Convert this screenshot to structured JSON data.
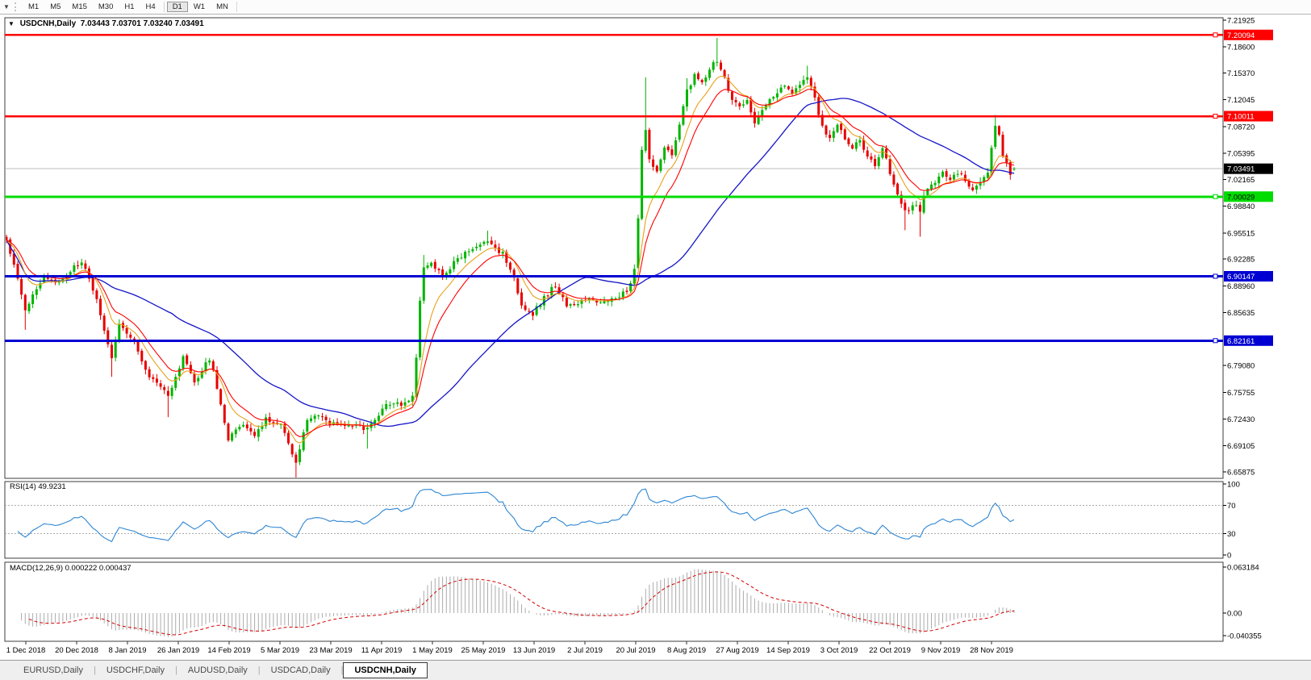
{
  "toolbar": {
    "dropdown_icon": "▼",
    "timeframes": [
      {
        "label": "M1",
        "active": false
      },
      {
        "label": "M5",
        "active": false
      },
      {
        "label": "M15",
        "active": false
      },
      {
        "label": "M30",
        "active": false
      },
      {
        "label": "H1",
        "active": false
      },
      {
        "label": "H4",
        "active": false
      },
      {
        "label": "D1",
        "active": true
      },
      {
        "label": "W1",
        "active": false
      },
      {
        "label": "MN",
        "active": false
      }
    ]
  },
  "chart": {
    "collapse_icon": "▼",
    "symbol_label": "USDCNH,Daily",
    "ohlc_text": "7.03443 7.03701 7.03240 7.03491",
    "price_ticks": [
      "7.21925",
      "7.18600",
      "7.15370",
      "7.12045",
      "7.08720",
      "7.05395",
      "7.02165",
      "6.98840",
      "6.95515",
      "6.92285",
      "6.88960",
      "6.85635",
      "6.79080",
      "6.75755",
      "6.72430",
      "6.69105",
      "6.65875"
    ],
    "current_price_label": "7.03491"
  },
  "rsi": {
    "label": "RSI(14) 49.9231",
    "axis_labels": [
      "100",
      "70",
      "30",
      "0"
    ],
    "axis_values": [
      100,
      70,
      30,
      0
    ],
    "level_lines": [
      70,
      30
    ]
  },
  "macd": {
    "label": "MACD(12,26,9) 0.000222 0.000437",
    "axis_labels": [
      "0.063184",
      "0.00",
      "-0.040355"
    ]
  },
  "tabs": [
    {
      "label": "EURUSD,Daily",
      "active": false
    },
    {
      "label": "USDCHF,Daily",
      "active": false
    },
    {
      "label": "AUDUSD,Daily",
      "active": false
    },
    {
      "label": "USDCAD,Daily",
      "active": false
    },
    {
      "label": "USDCNH,Daily",
      "active": true
    }
  ],
  "colors": {
    "candle_up": "#00B400",
    "candle_down": "#E60000",
    "ma_fast": "#E8A11C",
    "ma_medium": "#FF0000",
    "ma_slow": "#1616C8",
    "rsi_line": "#2E86D3",
    "rsi_level": "#ababab",
    "macd_bar": "#ababab",
    "macd_signal": "#D40000",
    "hline_red": "#FF0000",
    "hline_green": "#00DC00",
    "hline_blue": "#0000D2",
    "current_price_line": "#bebebe",
    "current_price_box": "#000000",
    "panel_border": "#3c3c3c"
  },
  "chart_data": {
    "type": "candlestick",
    "symbol": "USDCNH",
    "timeframe": "Daily",
    "current_ohlc": {
      "open": 7.03443,
      "high": 7.03701,
      "low": 7.0324,
      "close": 7.03491
    },
    "y_axis_range": [
      6.65875,
      7.21925
    ],
    "x_labels": [
      "1 Dec 2018",
      "20 Dec 2018",
      "8 Jan 2019",
      "26 Jan 2019",
      "14 Feb 2019",
      "5 Mar 2019",
      "23 Mar 2019",
      "11 Apr 2019",
      "1 May 2019",
      "25 May 2019",
      "13 Jun 2019",
      "2 Jul 2019",
      "20 Jul 2019",
      "8 Aug 2019",
      "27 Aug 2019",
      "14 Sep 2019",
      "3 Oct 2019",
      "22 Oct 2019",
      "9 Nov 2019",
      "28 Nov 2019"
    ],
    "horizontal_lines": [
      {
        "price": 7.20094,
        "label": "7.20094",
        "color": "#FF0000",
        "text_color": "#ffffff",
        "width": 2.5
      },
      {
        "price": 7.10011,
        "label": "7.10011",
        "color": "#FF0000",
        "text_color": "#ffffff",
        "width": 2.5
      },
      {
        "price": 7.00029,
        "label": "7.00029",
        "color": "#00DC00",
        "text_color": "#000000",
        "width": 3
      },
      {
        "price": 6.90147,
        "label": "6.90147",
        "color": "#0000D2",
        "text_color": "#ffffff",
        "width": 3
      },
      {
        "price": 6.82161,
        "label": "6.82161",
        "color": "#0000D2",
        "text_color": "#ffffff",
        "width": 3
      }
    ],
    "close_anchors": [
      [
        0,
        6.945
      ],
      [
        2,
        6.915
      ],
      [
        5,
        6.86
      ],
      [
        10,
        6.9
      ],
      [
        14,
        6.895
      ],
      [
        20,
        6.92
      ],
      [
        24,
        6.87
      ],
      [
        28,
        6.8
      ],
      [
        30,
        6.845
      ],
      [
        34,
        6.82
      ],
      [
        38,
        6.775
      ],
      [
        43,
        6.755
      ],
      [
        47,
        6.8
      ],
      [
        50,
        6.77
      ],
      [
        54,
        6.8
      ],
      [
        57,
        6.745
      ],
      [
        59,
        6.7
      ],
      [
        63,
        6.72
      ],
      [
        66,
        6.7
      ],
      [
        69,
        6.725
      ],
      [
        73,
        6.715
      ],
      [
        77,
        6.672
      ],
      [
        80,
        6.725
      ],
      [
        83,
        6.73
      ],
      [
        86,
        6.72
      ],
      [
        90,
        6.715
      ],
      [
        93,
        6.72
      ],
      [
        96,
        6.71
      ],
      [
        99,
        6.73
      ],
      [
        102,
        6.745
      ],
      [
        105,
        6.74
      ],
      [
        108,
        6.755
      ],
      [
        109,
        6.8
      ],
      [
        110,
        6.87
      ],
      [
        111,
        6.91
      ],
      [
        113,
        6.92
      ],
      [
        116,
        6.9
      ],
      [
        120,
        6.925
      ],
      [
        124,
        6.935
      ],
      [
        128,
        6.945
      ],
      [
        132,
        6.93
      ],
      [
        135,
        6.9
      ],
      [
        137,
        6.865
      ],
      [
        140,
        6.855
      ],
      [
        143,
        6.875
      ],
      [
        146,
        6.89
      ],
      [
        149,
        6.865
      ],
      [
        152,
        6.87
      ],
      [
        155,
        6.875
      ],
      [
        158,
        6.87
      ],
      [
        161,
        6.875
      ],
      [
        164,
        6.88
      ],
      [
        166,
        6.89
      ],
      [
        167,
        6.91
      ],
      [
        168,
        6.97
      ],
      [
        169,
        7.06
      ],
      [
        170,
        7.08
      ],
      [
        171,
        7.05
      ],
      [
        173,
        7.03
      ],
      [
        175,
        7.06
      ],
      [
        177,
        7.05
      ],
      [
        179,
        7.09
      ],
      [
        181,
        7.13
      ],
      [
        183,
        7.15
      ],
      [
        185,
        7.14
      ],
      [
        187,
        7.16
      ],
      [
        189,
        7.17
      ],
      [
        191,
        7.15
      ],
      [
        193,
        7.12
      ],
      [
        195,
        7.11
      ],
      [
        197,
        7.12
      ],
      [
        199,
        7.09
      ],
      [
        201,
        7.11
      ],
      [
        203,
        7.12
      ],
      [
        205,
        7.13
      ],
      [
        207,
        7.14
      ],
      [
        209,
        7.13
      ],
      [
        211,
        7.14
      ],
      [
        213,
        7.15
      ],
      [
        215,
        7.12
      ],
      [
        217,
        7.09
      ],
      [
        219,
        7.07
      ],
      [
        221,
        7.09
      ],
      [
        223,
        7.07
      ],
      [
        225,
        7.06
      ],
      [
        227,
        7.07
      ],
      [
        229,
        7.05
      ],
      [
        231,
        7.04
      ],
      [
        233,
        7.06
      ],
      [
        235,
        7.03
      ],
      [
        237,
        7.0
      ],
      [
        239,
        6.98
      ],
      [
        241,
        6.99
      ],
      [
        243,
        6.985
      ],
      [
        245,
        7.01
      ],
      [
        247,
        7.02
      ],
      [
        249,
        7.03
      ],
      [
        251,
        7.02
      ],
      [
        253,
        7.03
      ],
      [
        255,
        7.02
      ],
      [
        257,
        7.01
      ],
      [
        259,
        7.02
      ],
      [
        261,
        7.03
      ],
      [
        263,
        7.085
      ],
      [
        264,
        7.08
      ],
      [
        265,
        7.05
      ],
      [
        266,
        7.04
      ],
      [
        267,
        7.03
      ],
      [
        268,
        7.03491
      ]
    ],
    "wick_spikes": {
      "5": [
        0,
        0.02
      ],
      "28": [
        0,
        0.018
      ],
      "43": [
        0,
        0.025
      ],
      "77": [
        0,
        0.014
      ],
      "96": [
        0,
        0.02
      ],
      "111": [
        0.012,
        0
      ],
      "128": [
        0.012,
        0
      ],
      "170": [
        0.06,
        0
      ],
      "181": [
        0.01,
        0
      ],
      "189": [
        0.026,
        0
      ],
      "213": [
        0.012,
        0
      ],
      "239": [
        0,
        0.02
      ],
      "243": [
        0,
        0.028
      ],
      "263": [
        0.012,
        0
      ]
    },
    "indicators": {
      "moving_averages": [
        {
          "name": "fast",
          "period": 8,
          "color": "#E8A11C"
        },
        {
          "name": "medium",
          "period": 13,
          "color": "#FF0000"
        },
        {
          "name": "slow",
          "period": 45,
          "color": "#1616C8"
        }
      ],
      "rsi": {
        "period": 14,
        "current": 49.9231,
        "levels": [
          70,
          30
        ],
        "scale": [
          0,
          100
        ]
      },
      "macd": {
        "fast": 12,
        "slow": 26,
        "signal": 9,
        "current_values": [
          0.000222,
          0.000437
        ],
        "axis_max": 0.063184,
        "axis_min": -0.040355
      }
    }
  }
}
